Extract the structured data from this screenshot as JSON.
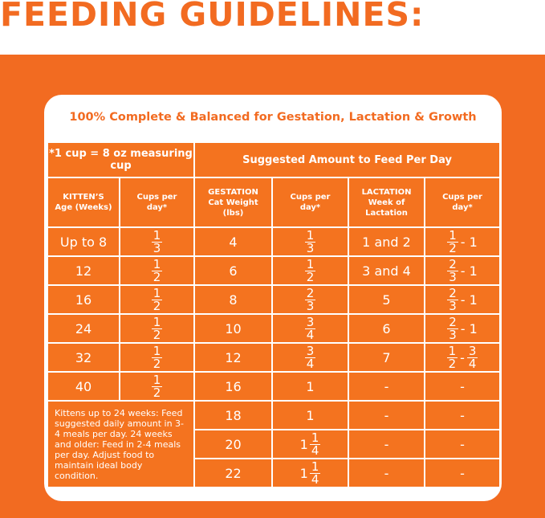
{
  "header": {
    "title": "FEEDING GUIDELINES:"
  },
  "card": {
    "subtitle": "100% Complete & Balanced for Gestation, Lactation & Growth"
  },
  "table": {
    "top_headers": [
      "*1 cup = 8 oz measuring cup",
      "Suggested Amount to Feed Per Day"
    ],
    "column_headers": [
      "KITTEN’S Age (Weeks)",
      "Cups per day*",
      "GESTATION Cat Weight (lbs)",
      "Cups per day*",
      "LACTATION Week of Lactation",
      "Cups per day*"
    ],
    "rows": [
      [
        "Up to 8",
        {
          "num": "1",
          "den": "3"
        },
        "4",
        {
          "num": "1",
          "den": "3"
        },
        "1 and 2",
        [
          {
            "num": "1",
            "den": "2"
          },
          "- 1"
        ]
      ],
      [
        "12",
        {
          "num": "1",
          "den": "2"
        },
        "6",
        {
          "num": "1",
          "den": "2"
        },
        "3 and 4",
        [
          {
            "num": "2",
            "den": "3"
          },
          "- 1"
        ]
      ],
      [
        "16",
        {
          "num": "1",
          "den": "2"
        },
        "8",
        {
          "num": "2",
          "den": "3"
        },
        "5",
        [
          {
            "num": "2",
            "den": "3"
          },
          "- 1"
        ]
      ],
      [
        "24",
        {
          "num": "1",
          "den": "2"
        },
        "10",
        {
          "num": "3",
          "den": "4"
        },
        "6",
        [
          {
            "num": "2",
            "den": "3"
          },
          "- 1"
        ]
      ],
      [
        "32",
        {
          "num": "1",
          "den": "2"
        },
        "12",
        {
          "num": "3",
          "den": "4"
        },
        "7",
        [
          {
            "num": "1",
            "den": "2"
          },
          "-",
          {
            "num": "3",
            "den": "4"
          }
        ]
      ],
      [
        "40",
        {
          "num": "1",
          "den": "2"
        },
        "16",
        "1",
        "-",
        "-"
      ]
    ],
    "note": "Kittens up to 24 weeks: Feed suggested daily amount in 3-4 meals per day. 24 weeks and older: Feed in 2-4 meals per day. Adjust food to maintain ideal body condition.",
    "note_rows": [
      [
        "18",
        "1",
        "-",
        "-"
      ],
      [
        "20",
        {
          "whole": "1",
          "num": "1",
          "den": "4"
        },
        "-",
        "-"
      ],
      [
        "22",
        {
          "whole": "1",
          "num": "1",
          "den": "4"
        },
        "-",
        "-"
      ]
    ]
  }
}
